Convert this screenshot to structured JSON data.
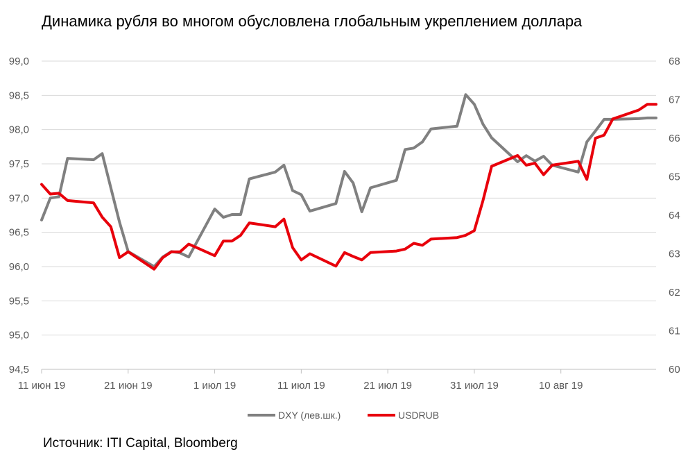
{
  "title": "Динамика рубля во многом обусловлена глобальным укреплением доллара",
  "source": "Источник: ITI Capital, Bloomberg",
  "chart_data": {
    "type": "line",
    "title": "Динамика рубля во многом обусловлена глобальным укреплением доллара",
    "x_range": [
      "2019-06-11",
      "2019-08-21"
    ],
    "xtick_labels": [
      "11 июн 19",
      "21 июн 19",
      "1 июл 19",
      "11 июл 19",
      "21 июл 19",
      "31 июл 19",
      "10 авг 19"
    ],
    "xtick_dates": [
      "2019-06-11",
      "2019-06-21",
      "2019-07-01",
      "2019-07-11",
      "2019-07-21",
      "2019-07-31",
      "2019-08-10"
    ],
    "y_left": {
      "lim": [
        94.5,
        99.0
      ],
      "ticks": [
        "94,5",
        "95,0",
        "95,5",
        "96,0",
        "96,5",
        "97,0",
        "97,5",
        "98,0",
        "98,5",
        "99,0"
      ],
      "tick_values": [
        94.5,
        95.0,
        95.5,
        96.0,
        96.5,
        97.0,
        97.5,
        98.0,
        98.5,
        99.0
      ]
    },
    "y_right": {
      "lim": [
        60,
        68
      ],
      "ticks": [
        "60",
        "61",
        "62",
        "63",
        "64",
        "65",
        "66",
        "67",
        "68"
      ],
      "tick_values": [
        60,
        61,
        62,
        63,
        64,
        65,
        66,
        67,
        68
      ]
    },
    "grid": "horizontal",
    "legend_position": "bottom",
    "series": [
      {
        "name": "DXY (лев.шк.)",
        "axis": "left",
        "color": "#808080",
        "x": [
          "2019-06-11",
          "2019-06-12",
          "2019-06-13",
          "2019-06-14",
          "2019-06-17",
          "2019-06-18",
          "2019-06-19",
          "2019-06-20",
          "2019-06-21",
          "2019-06-24",
          "2019-06-25",
          "2019-06-26",
          "2019-06-27",
          "2019-06-28",
          "2019-07-01",
          "2019-07-02",
          "2019-07-03",
          "2019-07-04",
          "2019-07-05",
          "2019-07-08",
          "2019-07-09",
          "2019-07-10",
          "2019-07-11",
          "2019-07-12",
          "2019-07-15",
          "2019-07-16",
          "2019-07-17",
          "2019-07-18",
          "2019-07-19",
          "2019-07-22",
          "2019-07-23",
          "2019-07-24",
          "2019-07-25",
          "2019-07-26",
          "2019-07-29",
          "2019-07-30",
          "2019-07-31",
          "2019-08-01",
          "2019-08-02",
          "2019-08-05",
          "2019-08-06",
          "2019-08-07",
          "2019-08-08",
          "2019-08-09",
          "2019-08-12",
          "2019-08-13",
          "2019-08-14",
          "2019-08-15",
          "2019-08-16",
          "2019-08-19",
          "2019-08-20",
          "2019-08-21"
        ],
        "values": [
          96.68,
          97.0,
          97.02,
          97.58,
          97.56,
          97.65,
          97.15,
          96.65,
          96.22,
          96.0,
          96.14,
          96.22,
          96.2,
          96.14,
          96.84,
          96.72,
          96.76,
          96.76,
          97.28,
          97.38,
          97.48,
          97.11,
          97.05,
          96.81,
          96.92,
          97.39,
          97.22,
          96.8,
          97.15,
          97.26,
          97.71,
          97.73,
          97.82,
          98.01,
          98.05,
          98.51,
          98.37,
          98.08,
          97.88,
          97.53,
          97.62,
          97.54,
          97.61,
          97.48,
          97.38,
          97.82,
          97.98,
          98.15,
          98.15,
          98.16,
          98.17,
          98.17
        ]
      },
      {
        "name": "USDRUB",
        "axis": "right",
        "color": "#e8000b",
        "x": [
          "2019-06-11",
          "2019-06-12",
          "2019-06-13",
          "2019-06-14",
          "2019-06-17",
          "2019-06-18",
          "2019-06-19",
          "2019-06-20",
          "2019-06-21",
          "2019-06-24",
          "2019-06-25",
          "2019-06-26",
          "2019-06-27",
          "2019-06-28",
          "2019-07-01",
          "2019-07-02",
          "2019-07-03",
          "2019-07-04",
          "2019-07-05",
          "2019-07-08",
          "2019-07-09",
          "2019-07-10",
          "2019-07-11",
          "2019-07-12",
          "2019-07-15",
          "2019-07-16",
          "2019-07-17",
          "2019-07-18",
          "2019-07-19",
          "2019-07-22",
          "2019-07-23",
          "2019-07-24",
          "2019-07-25",
          "2019-07-26",
          "2019-07-29",
          "2019-07-30",
          "2019-07-31",
          "2019-08-01",
          "2019-08-02",
          "2019-08-05",
          "2019-08-06",
          "2019-08-07",
          "2019-08-08",
          "2019-08-09",
          "2019-08-12",
          "2019-08-13",
          "2019-08-14",
          "2019-08-15",
          "2019-08-16",
          "2019-08-19",
          "2019-08-20",
          "2019-08-21"
        ],
        "values": [
          64.8,
          64.55,
          64.57,
          64.38,
          64.32,
          63.95,
          63.7,
          62.9,
          63.05,
          62.6,
          62.9,
          63.05,
          63.05,
          63.25,
          62.95,
          63.33,
          63.33,
          63.48,
          63.8,
          63.7,
          63.9,
          63.16,
          62.84,
          63.0,
          62.68,
          63.03,
          62.93,
          62.84,
          63.03,
          63.07,
          63.12,
          63.27,
          63.22,
          63.38,
          63.42,
          63.48,
          63.6,
          64.38,
          65.27,
          65.55,
          65.3,
          65.35,
          65.05,
          65.3,
          65.4,
          64.93,
          66.0,
          66.08,
          66.5,
          66.73,
          66.88,
          66.88
        ]
      }
    ]
  }
}
